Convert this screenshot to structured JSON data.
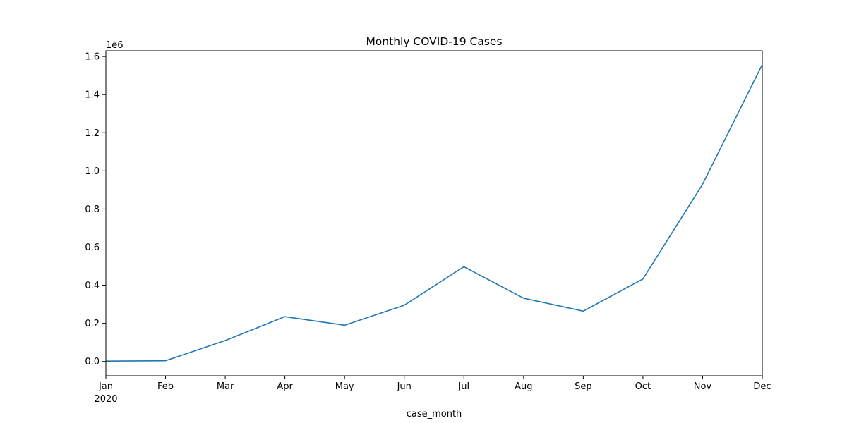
{
  "chart_data": {
    "type": "line",
    "title": "Monthly COVID-19 Cases",
    "xlabel": "case_month",
    "ylabel": "",
    "y_offset_label": "1e6",
    "y_scale": 1000000,
    "categories": [
      "Jan",
      "Feb",
      "Mar",
      "Apr",
      "May",
      "Jun",
      "Jul",
      "Aug",
      "Sep",
      "Oct",
      "Nov",
      "Dec"
    ],
    "year_label": "2020",
    "series": [
      {
        "color": "#1f77b4",
        "values": [
          2000,
          4000,
          110000,
          235000,
          190000,
          295000,
          497000,
          332000,
          264000,
          433000,
          930000,
          1558000
        ]
      }
    ],
    "ylim": [
      -75000,
      1630000
    ],
    "yticks": [
      0,
      200000,
      400000,
      600000,
      800000,
      1000000,
      1200000,
      1400000,
      1600000
    ],
    "ytick_labels": [
      "0.0",
      "0.2",
      "0.4",
      "0.6",
      "0.8",
      "1.0",
      "1.2",
      "1.4",
      "1.6"
    ],
    "grid": false,
    "legend": "none"
  }
}
